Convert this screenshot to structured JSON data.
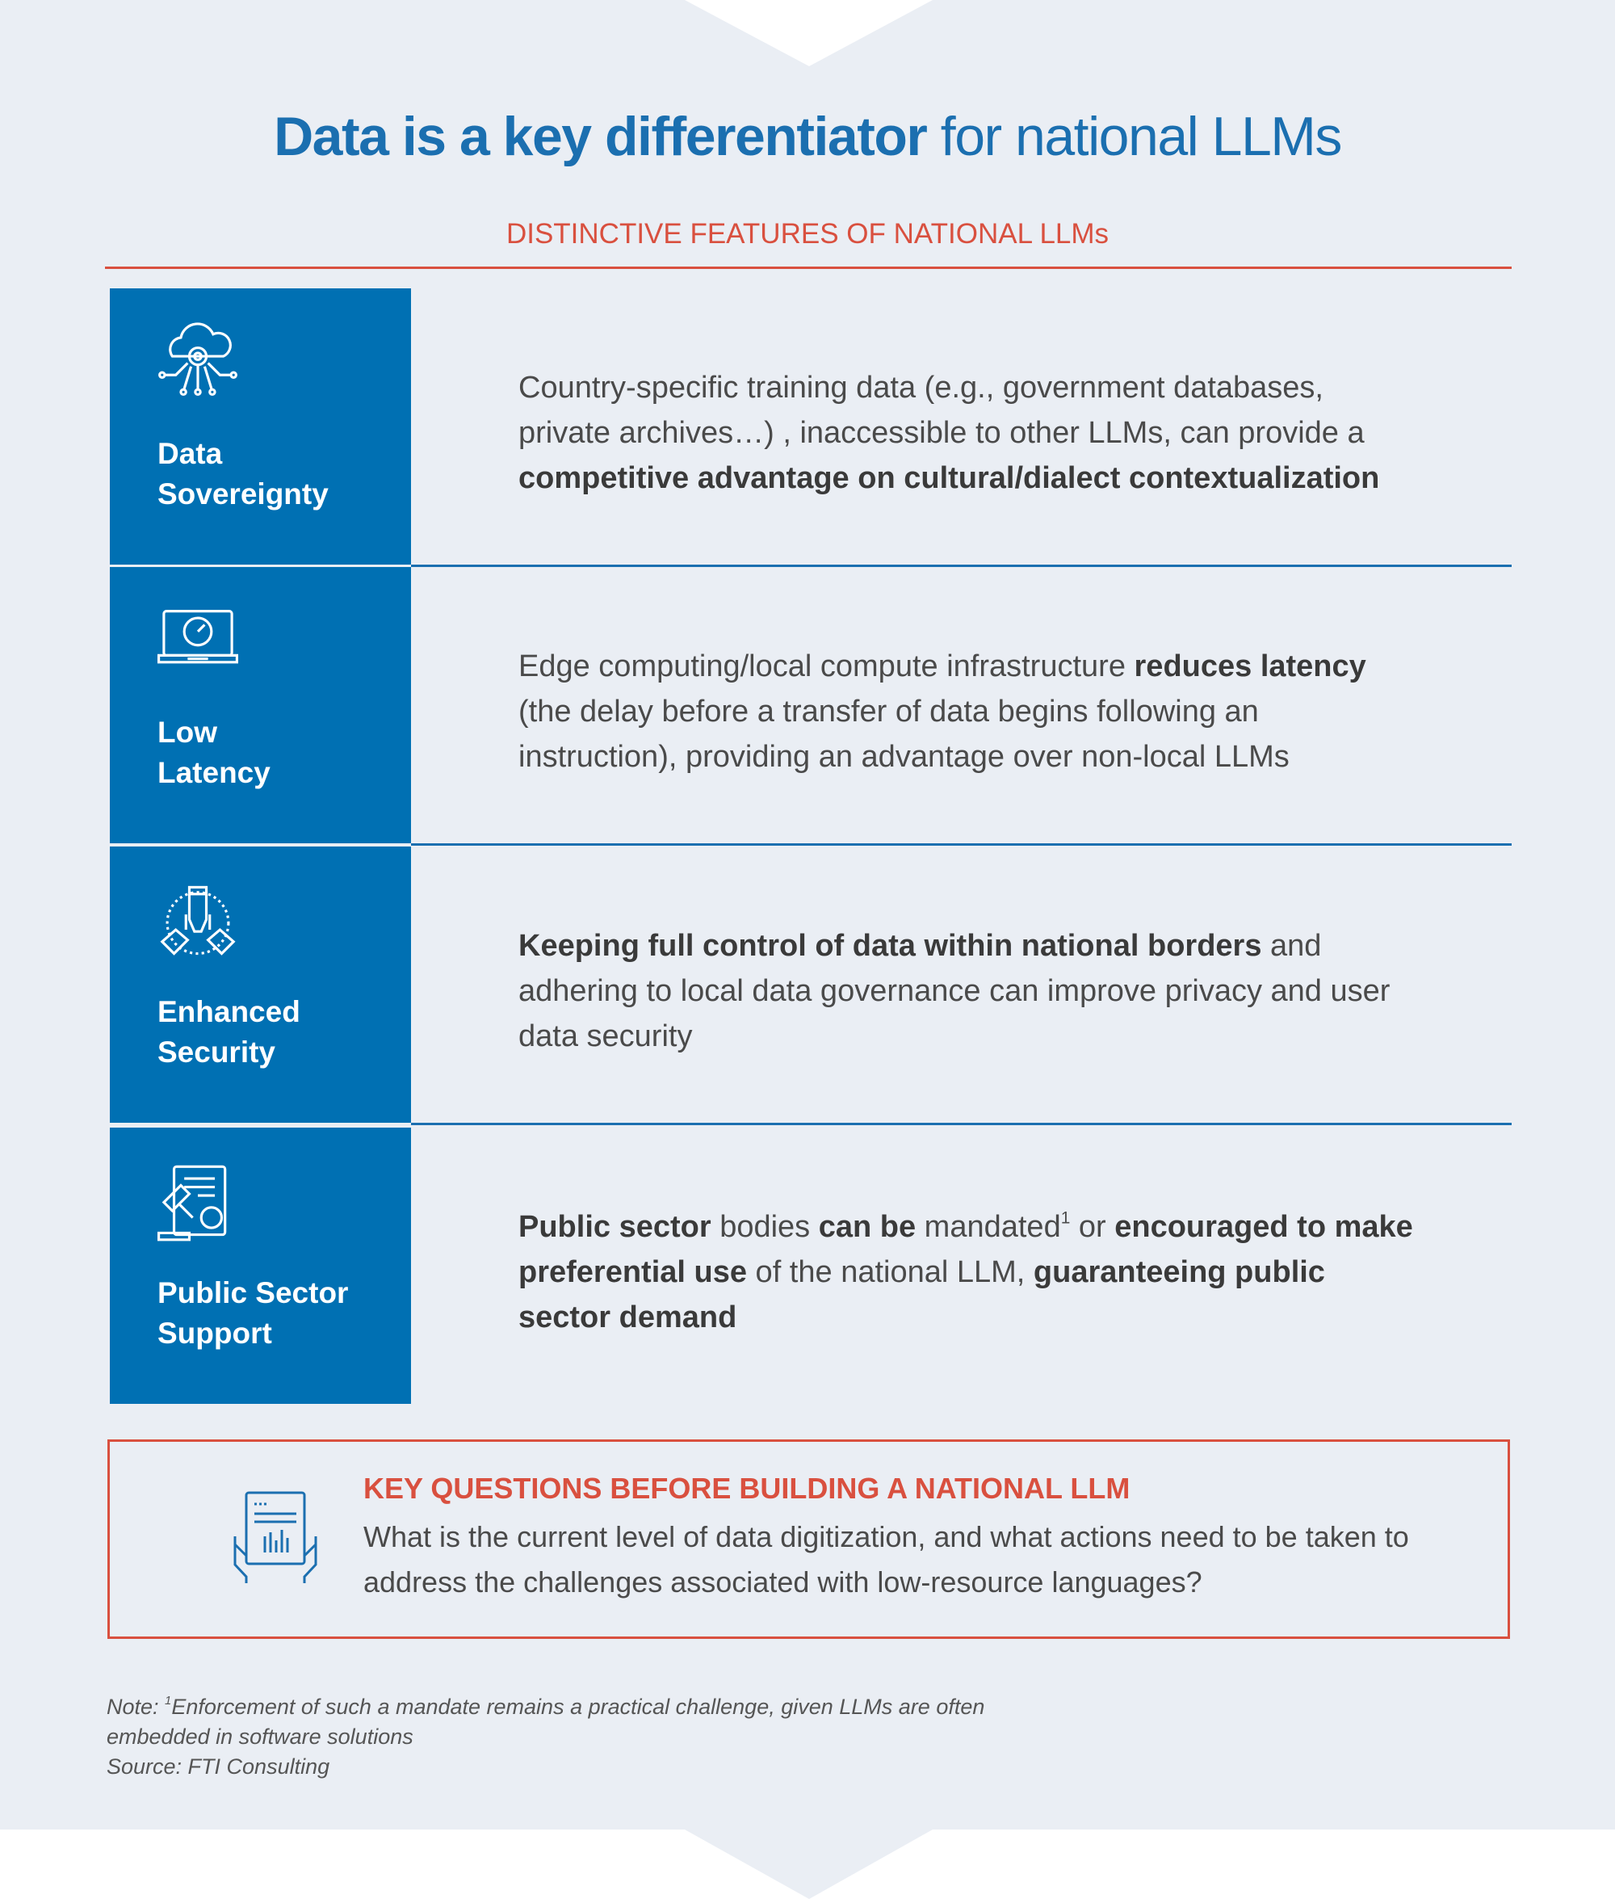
{
  "header": {
    "title_bold": "Data is a key differentiator",
    "title_rest": "for national LLMs",
    "subtitle": "DISTINCTIVE FEATURES OF NATIONAL LLMs"
  },
  "features": [
    {
      "label": [
        "Data",
        "Sovereignty"
      ],
      "description": [
        {
          "text": "Country-specific training data (e.g., government databases, private archives…) , inaccessible to other LLMs, can provide a ",
          "bold": false
        },
        {
          "text": "competitive advantage on cultural/dialect contextualization",
          "bold": true
        }
      ]
    },
    {
      "label": [
        "Low",
        "Latency"
      ],
      "description": [
        {
          "text": "Edge computing/local compute infrastructure ",
          "bold": false
        },
        {
          "text": "reduces latency",
          "bold": true
        },
        {
          "text": " (the delay before a transfer of data begins following an instruction), providing an advantage over non-local LLMs",
          "bold": false
        }
      ]
    },
    {
      "label": [
        "Enhanced",
        "Security"
      ],
      "description": [
        {
          "text": "Keeping full control of data within national borders",
          "bold": true
        },
        {
          "text": " and adhering to local data governance can improve privacy and user data security",
          "bold": false
        }
      ]
    },
    {
      "label": [
        "Public Sector",
        "Support"
      ],
      "description": [
        {
          "text": "Public sector",
          "bold": true
        },
        {
          "text": " bodies ",
          "bold": false
        },
        {
          "text": "can be",
          "bold": true
        },
        {
          "text": " mandated",
          "bold": false
        },
        {
          "text": "1",
          "bold": false,
          "sup": true
        },
        {
          "text": " or ",
          "bold": false
        },
        {
          "text": "encouraged to make preferential use",
          "bold": true
        },
        {
          "text": " of the national LLM, ",
          "bold": false
        },
        {
          "text": "guaranteeing public sector demand",
          "bold": true
        }
      ]
    }
  ],
  "key_questions": {
    "heading": "KEY QUESTIONS BEFORE BUILDING A NATIONAL LLM",
    "text": "What is the current level of data digitization, and what actions need to be taken to address the challenges associated with low-resource languages?"
  },
  "note": {
    "prefix": "Note: ",
    "sup": "1",
    "text": "Enforcement of such a mandate remains a practical challenge, given LLMs are often embedded in software solutions",
    "source": "Source: FTI Consulting"
  }
}
